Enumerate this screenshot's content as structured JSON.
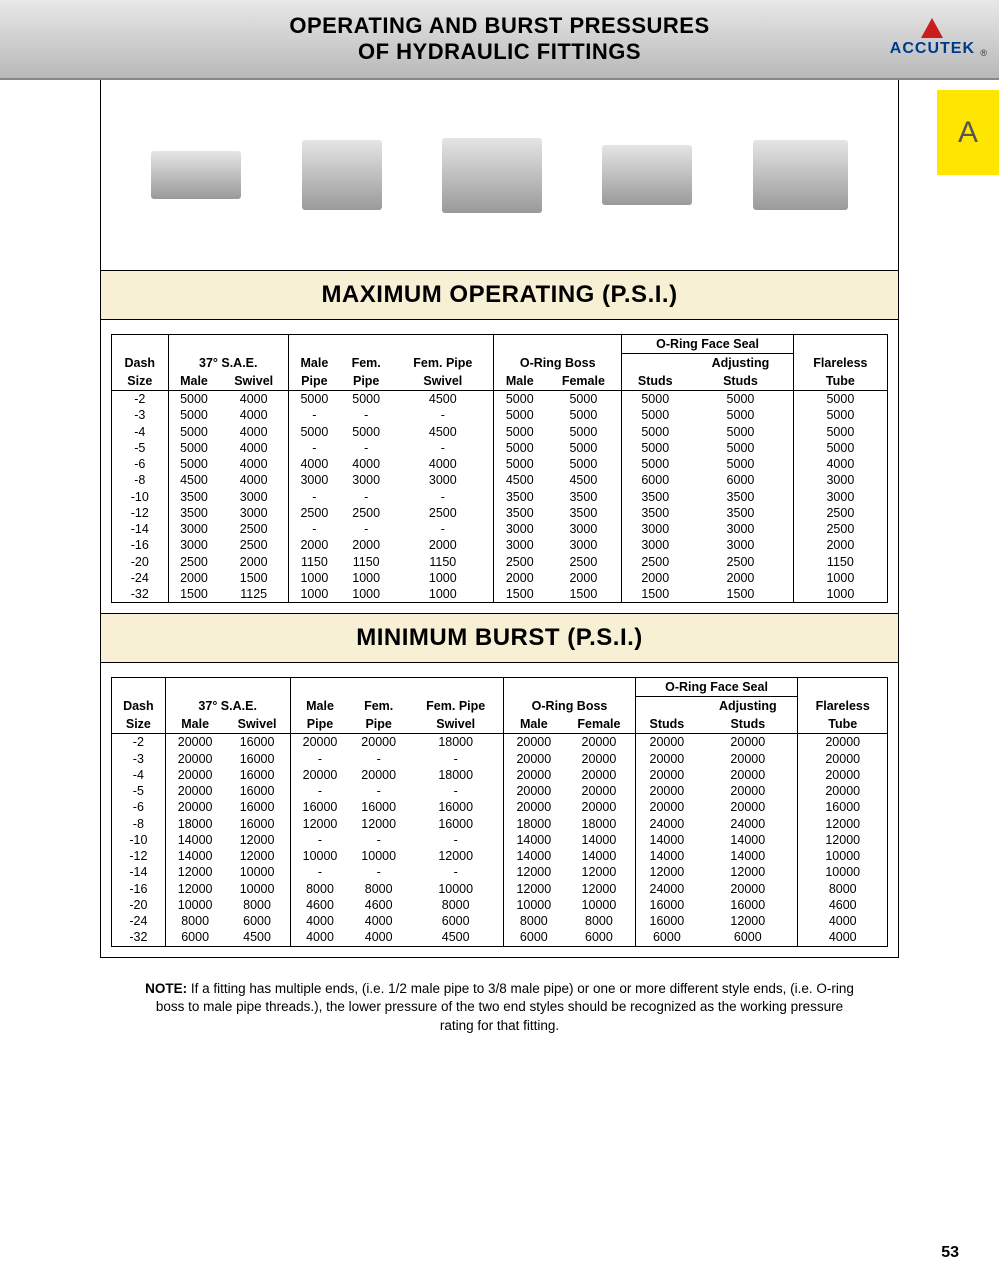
{
  "header": {
    "title_line1": "OPERATING AND BURST PRESSURES",
    "title_line2": "OF HYDRAULIC FITTINGS",
    "brand": "ACCUTEK",
    "brand_color": "#003a8c",
    "tri_color": "#c81e1e",
    "reg_mark": "®"
  },
  "tab_letter": "A",
  "tab_bg": "#ffe600",
  "sections": {
    "max_title": "MAXIMUM OPERATING (P.S.I.)",
    "min_title": "MINIMUM BURST (P.S.I.)",
    "section_bg": "#f8f0d5"
  },
  "columns": {
    "dash": "Dash",
    "size": "Size",
    "sae_group": "37° S.A.E.",
    "male": "Male",
    "swivel": "Swivel",
    "male_pipe": "Male",
    "pipe": "Pipe",
    "fem": "Fem.",
    "fem_pipe_sw_l1": "Fem. Pipe",
    "fem_pipe_sw_l2": "Swivel",
    "oring_boss": "O-Ring Boss",
    "female": "Female",
    "oring_face": "O-Ring Face Seal",
    "studs": "Studs",
    "adj_l1": "Adjusting",
    "adj_l2": "Studs",
    "flareless": "Flareless",
    "tube": "Tube"
  },
  "max_rows": [
    {
      "s": "-2",
      "a": "5000",
      "b": "4000",
      "c": "5000",
      "d": "5000",
      "e": "4500",
      "f": "5000",
      "g": "5000",
      "h": "5000",
      "i": "5000",
      "j": "5000"
    },
    {
      "s": "-3",
      "a": "5000",
      "b": "4000",
      "c": "-",
      "d": "-",
      "e": "-",
      "f": "5000",
      "g": "5000",
      "h": "5000",
      "i": "5000",
      "j": "5000"
    },
    {
      "s": "-4",
      "a": "5000",
      "b": "4000",
      "c": "5000",
      "d": "5000",
      "e": "4500",
      "f": "5000",
      "g": "5000",
      "h": "5000",
      "i": "5000",
      "j": "5000"
    },
    {
      "s": "-5",
      "a": "5000",
      "b": "4000",
      "c": "-",
      "d": "-",
      "e": "-",
      "f": "5000",
      "g": "5000",
      "h": "5000",
      "i": "5000",
      "j": "5000"
    },
    {
      "s": "-6",
      "a": "5000",
      "b": "4000",
      "c": "4000",
      "d": "4000",
      "e": "4000",
      "f": "5000",
      "g": "5000",
      "h": "5000",
      "i": "5000",
      "j": "4000"
    },
    {
      "s": "-8",
      "a": "4500",
      "b": "4000",
      "c": "3000",
      "d": "3000",
      "e": "3000",
      "f": "4500",
      "g": "4500",
      "h": "6000",
      "i": "6000",
      "j": "3000"
    },
    {
      "s": "-10",
      "a": "3500",
      "b": "3000",
      "c": "-",
      "d": "-",
      "e": "-",
      "f": "3500",
      "g": "3500",
      "h": "3500",
      "i": "3500",
      "j": "3000"
    },
    {
      "s": "-12",
      "a": "3500",
      "b": "3000",
      "c": "2500",
      "d": "2500",
      "e": "2500",
      "f": "3500",
      "g": "3500",
      "h": "3500",
      "i": "3500",
      "j": "2500"
    },
    {
      "s": "-14",
      "a": "3000",
      "b": "2500",
      "c": "-",
      "d": "-",
      "e": "-",
      "f": "3000",
      "g": "3000",
      "h": "3000",
      "i": "3000",
      "j": "2500"
    },
    {
      "s": "-16",
      "a": "3000",
      "b": "2500",
      "c": "2000",
      "d": "2000",
      "e": "2000",
      "f": "3000",
      "g": "3000",
      "h": "3000",
      "i": "3000",
      "j": "2000"
    },
    {
      "s": "-20",
      "a": "2500",
      "b": "2000",
      "c": "1150",
      "d": "1150",
      "e": "1150",
      "f": "2500",
      "g": "2500",
      "h": "2500",
      "i": "2500",
      "j": "1150"
    },
    {
      "s": "-24",
      "a": "2000",
      "b": "1500",
      "c": "1000",
      "d": "1000",
      "e": "1000",
      "f": "2000",
      "g": "2000",
      "h": "2000",
      "i": "2000",
      "j": "1000"
    },
    {
      "s": "-32",
      "a": "1500",
      "b": "1125",
      "c": "1000",
      "d": "1000",
      "e": "1000",
      "f": "1500",
      "g": "1500",
      "h": "1500",
      "i": "1500",
      "j": "1000"
    }
  ],
  "min_rows": [
    {
      "s": "-2",
      "a": "20000",
      "b": "16000",
      "c": "20000",
      "d": "20000",
      "e": "18000",
      "f": "20000",
      "g": "20000",
      "h": "20000",
      "i": "20000",
      "j": "20000"
    },
    {
      "s": "-3",
      "a": "20000",
      "b": "16000",
      "c": "-",
      "d": "-",
      "e": "-",
      "f": "20000",
      "g": "20000",
      "h": "20000",
      "i": "20000",
      "j": "20000"
    },
    {
      "s": "-4",
      "a": "20000",
      "b": "16000",
      "c": "20000",
      "d": "20000",
      "e": "18000",
      "f": "20000",
      "g": "20000",
      "h": "20000",
      "i": "20000",
      "j": "20000"
    },
    {
      "s": "-5",
      "a": "20000",
      "b": "16000",
      "c": "-",
      "d": "-",
      "e": "-",
      "f": "20000",
      "g": "20000",
      "h": "20000",
      "i": "20000",
      "j": "20000"
    },
    {
      "s": "-6",
      "a": "20000",
      "b": "16000",
      "c": "16000",
      "d": "16000",
      "e": "16000",
      "f": "20000",
      "g": "20000",
      "h": "20000",
      "i": "20000",
      "j": "16000"
    },
    {
      "s": "-8",
      "a": "18000",
      "b": "16000",
      "c": "12000",
      "d": "12000",
      "e": "16000",
      "f": "18000",
      "g": "18000",
      "h": "24000",
      "i": "24000",
      "j": "12000"
    },
    {
      "s": "-10",
      "a": "14000",
      "b": "12000",
      "c": "-",
      "d": "-",
      "e": "-",
      "f": "14000",
      "g": "14000",
      "h": "14000",
      "i": "14000",
      "j": "12000"
    },
    {
      "s": "-12",
      "a": "14000",
      "b": "12000",
      "c": "10000",
      "d": "10000",
      "e": "12000",
      "f": "14000",
      "g": "14000",
      "h": "14000",
      "i": "14000",
      "j": "10000"
    },
    {
      "s": "-14",
      "a": "12000",
      "b": "10000",
      "c": "-",
      "d": "-",
      "e": "-",
      "f": "12000",
      "g": "12000",
      "h": "12000",
      "i": "12000",
      "j": "10000"
    },
    {
      "s": "-16",
      "a": "12000",
      "b": "10000",
      "c": "8000",
      "d": "8000",
      "e": "10000",
      "f": "12000",
      "g": "12000",
      "h": "24000",
      "i": "20000",
      "j": "8000"
    },
    {
      "s": "-20",
      "a": "10000",
      "b": "8000",
      "c": "4600",
      "d": "4600",
      "e": "8000",
      "f": "10000",
      "g": "10000",
      "h": "16000",
      "i": "16000",
      "j": "4600"
    },
    {
      "s": "-24",
      "a": "8000",
      "b": "6000",
      "c": "4000",
      "d": "4000",
      "e": "6000",
      "f": "8000",
      "g": "8000",
      "h": "16000",
      "i": "12000",
      "j": "4000"
    },
    {
      "s": "-32",
      "a": "6000",
      "b": "4500",
      "c": "4000",
      "d": "4000",
      "e": "4500",
      "f": "6000",
      "g": "6000",
      "h": "6000",
      "i": "6000",
      "j": "4000"
    }
  ],
  "note": {
    "label": "NOTE:",
    "text": " If a fitting has multiple ends, (i.e. 1/2 male pipe to 3/8 male pipe) or one or more different style ends, (i.e. O-ring boss to male pipe threads.), the lower pressure of the two end styles should be recognized as the working pressure rating for that fitting."
  },
  "page_number": "53"
}
